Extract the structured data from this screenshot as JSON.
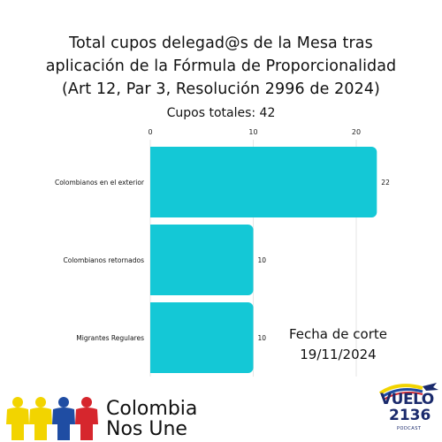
{
  "chart_data": {
    "type": "bar",
    "orientation": "horizontal",
    "title_lines": [
      "Total cupos delegad@s de la Mesa tras",
      "aplicación de la Fórmula de Proporcionalidad",
      "(Art 12, Par 3, Resolución 2996 de 2024)"
    ],
    "subtitle": "Cupos totales: 42",
    "categories": [
      "Colombianos en el exterior",
      "Colombianos retornados",
      "Migrantes Regulares"
    ],
    "values": [
      22,
      10,
      10
    ],
    "xlim": [
      0,
      22
    ],
    "xticks": [
      0,
      10,
      20
    ],
    "grid": true,
    "bar_color": "#14c8d6"
  },
  "note": {
    "line1": "Fecha de corte",
    "line2": "19/11/2024"
  },
  "brand": {
    "line1": "Colombia",
    "line2": "Nos Une",
    "figure_colors": [
      "#f2d400",
      "#f2d400",
      "#1f4da3",
      "#d6262d"
    ]
  },
  "podcast": {
    "main": "VUELO",
    "number": "2136",
    "small": "PODCAST"
  }
}
